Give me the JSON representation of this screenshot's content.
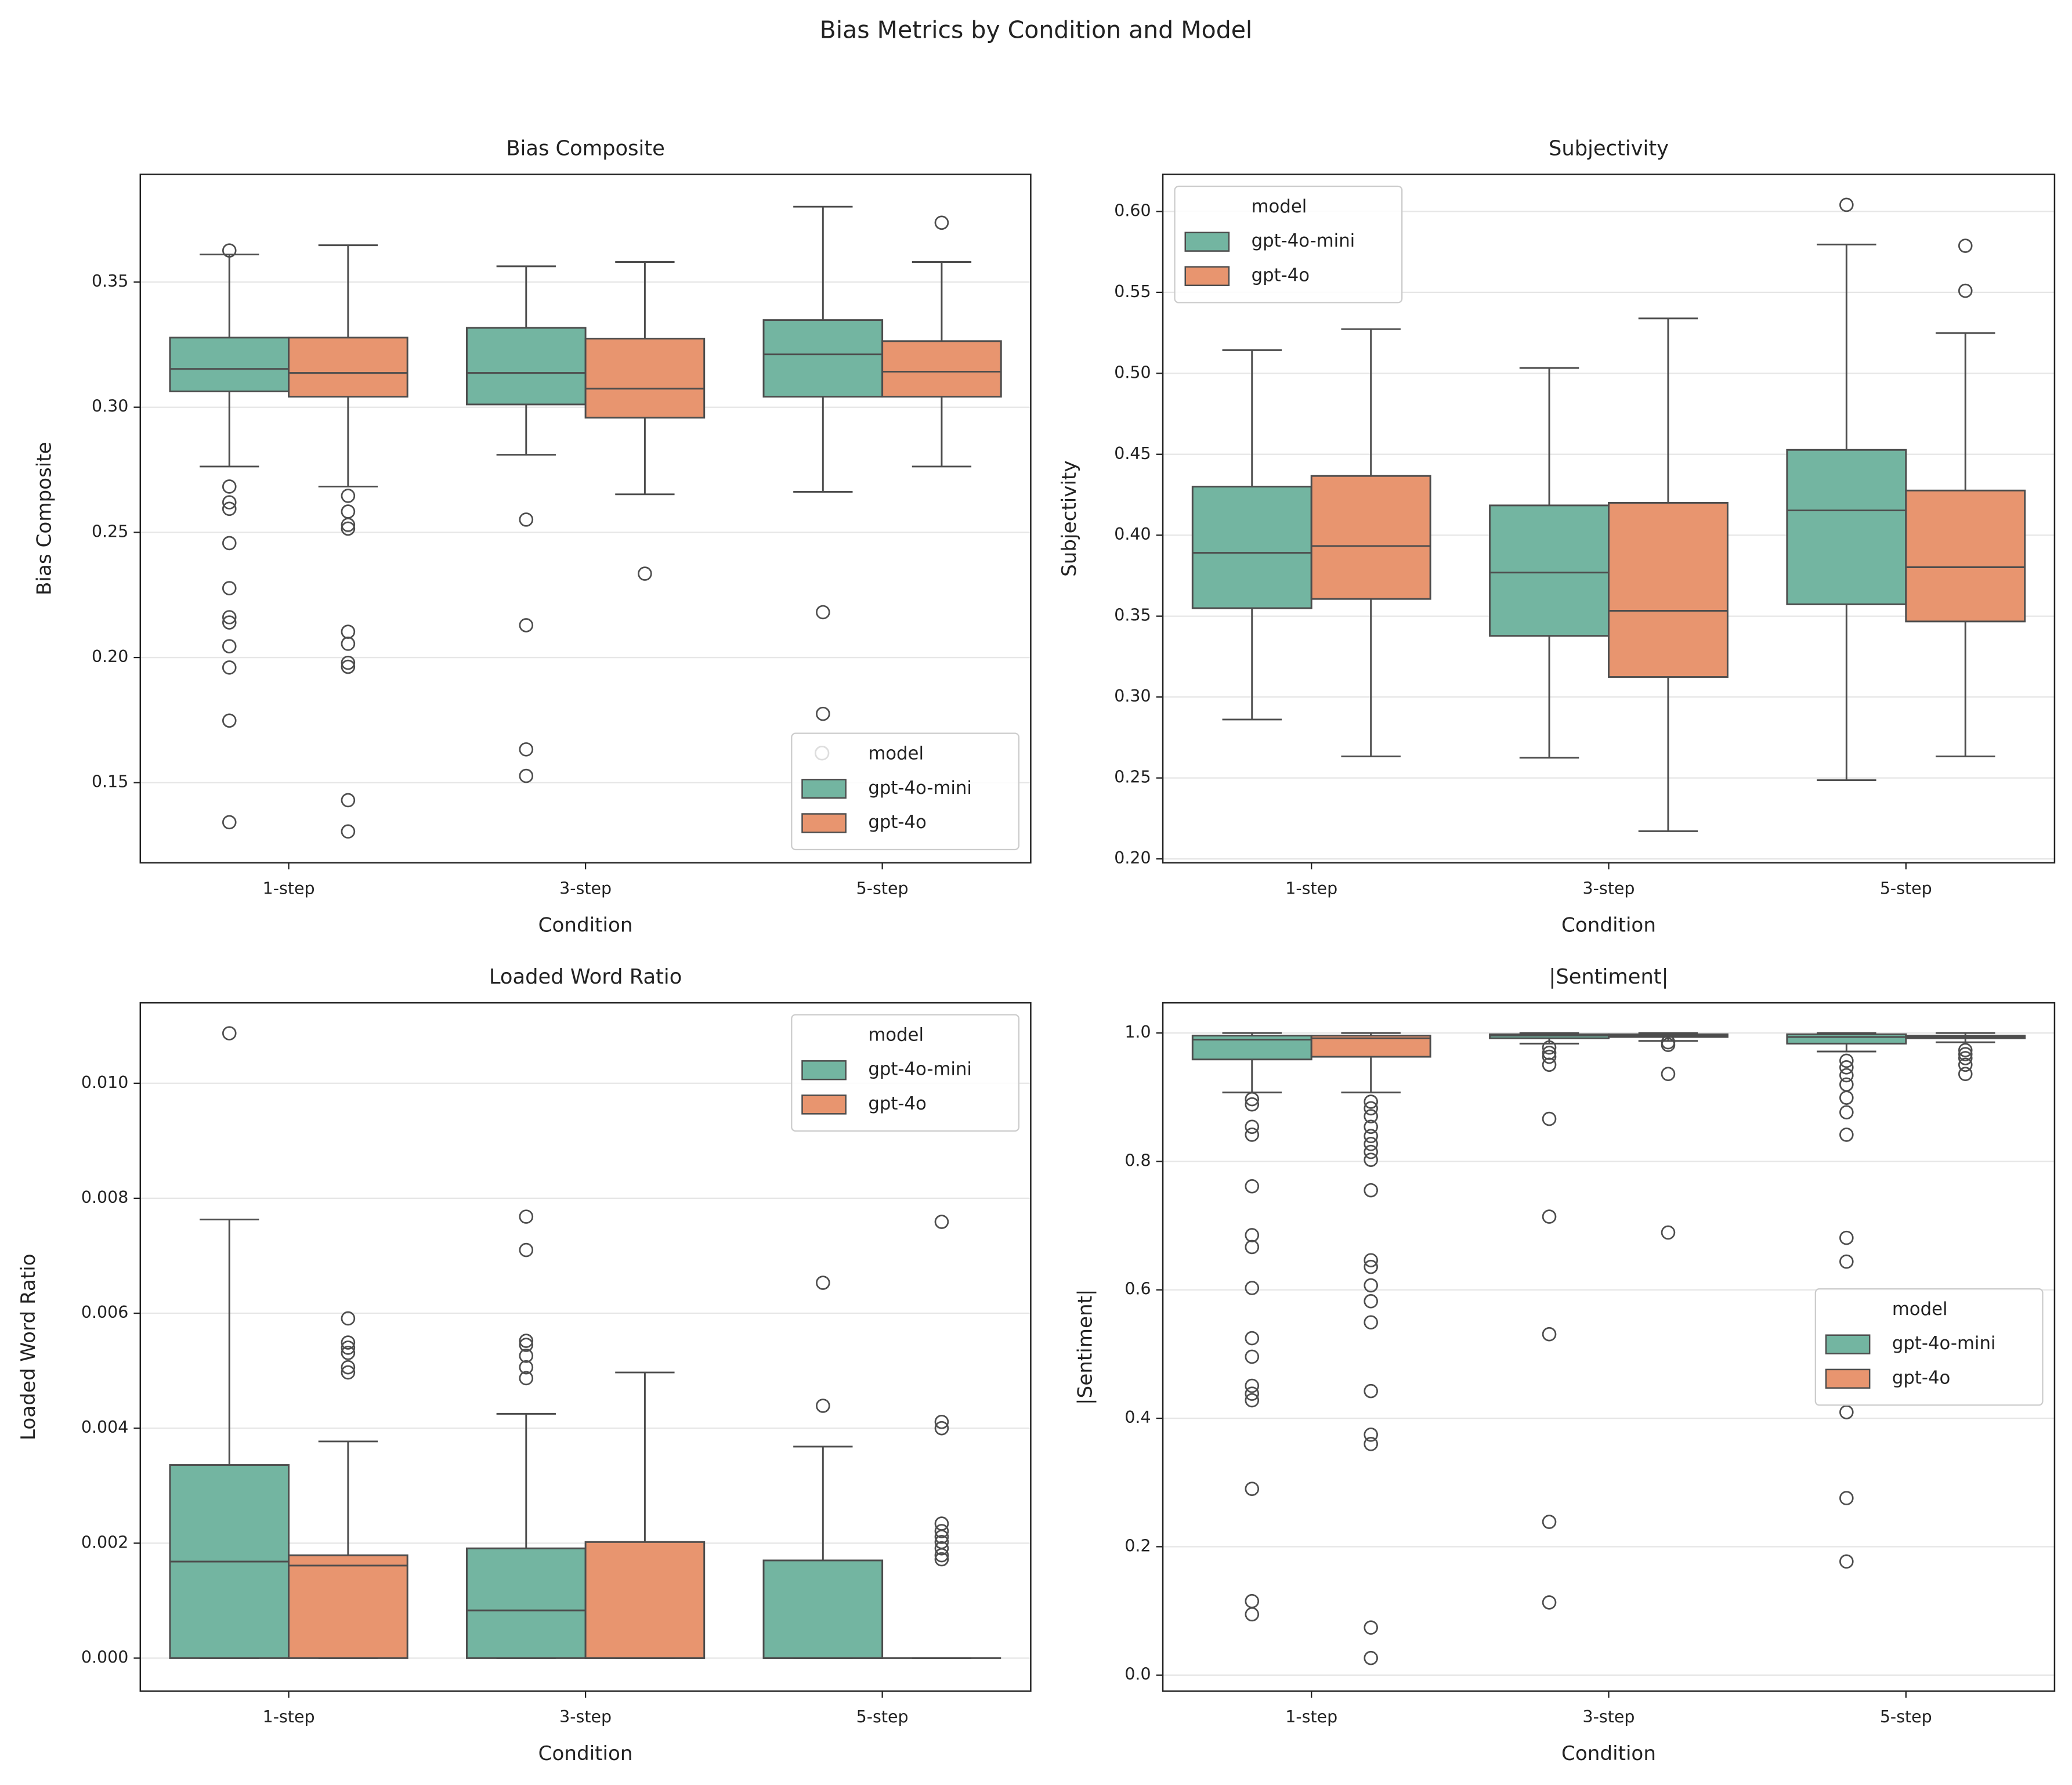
{
  "title": "Bias Metrics by Condition and Model",
  "chart_data": [
    {
      "type": "box",
      "title": "Bias Composite",
      "xlabel": "Condition",
      "ylabel": "Bias Composite",
      "categories": [
        "1-step",
        "3-step",
        "5-step"
      ],
      "ylim": [
        0.118,
        0.393
      ],
      "yticks": [
        {
          "value": 0.15,
          "label": "0.15"
        },
        {
          "value": 0.2,
          "label": "0.20"
        },
        0.25,
        {
          "value": 0.3,
          "label": "0.30"
        },
        0.35
      ],
      "grid": true,
      "legend_title": "model",
      "legend_loc": "lower right",
      "series": [
        {
          "name": "gpt-4o-mini",
          "color": "#73b5a1",
          "boxes": [
            {
              "whislo": 0.2763,
              "q1": 0.3063,
              "med": 0.3153,
              "q3": 0.3278,
              "whishi": 0.361,
              "fliers": [
                0.3626,
                0.2683,
                0.262,
                0.2594,
                0.2457,
                0.2277,
                0.2161,
                0.214,
                0.2045,
                0.196,
                0.1748,
                0.1342
              ]
            },
            {
              "whislo": 0.281,
              "q1": 0.3011,
              "med": 0.3137,
              "q3": 0.3317,
              "whishi": 0.3563,
              "fliers": [
                0.2551,
                0.2129,
                0.1633,
                0.1527
              ]
            },
            {
              "whislo": 0.2662,
              "q1": 0.3042,
              "med": 0.3211,
              "q3": 0.3348,
              "whishi": 0.3801,
              "fliers": [
                0.2181,
                0.1775
              ]
            }
          ]
        },
        {
          "name": "gpt-4o",
          "color": "#e8956f",
          "boxes": [
            {
              "whislo": 0.2683,
              "q1": 0.3042,
              "med": 0.3137,
              "q3": 0.3278,
              "whishi": 0.3647,
              "fliers": [
                0.2646,
                0.2583,
                0.253,
                0.2515,
                0.2103,
                0.2055,
                0.1979,
                0.1963,
                0.143,
                0.1305
              ]
            },
            {
              "whislo": 0.2652,
              "q1": 0.2958,
              "med": 0.3074,
              "q3": 0.3274,
              "whishi": 0.358,
              "fliers": [
                0.2335
              ]
            },
            {
              "whislo": 0.2763,
              "q1": 0.3042,
              "med": 0.3142,
              "q3": 0.3264,
              "whishi": 0.358,
              "fliers": [
                0.3737
              ]
            }
          ]
        }
      ]
    },
    {
      "type": "box",
      "title": "Subjectivity",
      "xlabel": "Condition",
      "ylabel": "Subjectivity",
      "categories": [
        "1-step",
        "3-step",
        "5-step"
      ],
      "ylim": [
        0.1976,
        0.6229
      ],
      "yticks": [
        {
          "value": 0.2,
          "label": "0.20"
        },
        0.25,
        {
          "value": 0.3,
          "label": "0.30"
        },
        0.35,
        {
          "value": 0.4,
          "label": "0.40"
        },
        0.45,
        {
          "value": 0.5,
          "label": "0.50"
        },
        0.55,
        {
          "value": 0.6,
          "label": "0.60"
        }
      ],
      "grid": true,
      "legend_title": "model",
      "legend_loc": "upper left",
      "series": [
        {
          "name": "gpt-4o-mini",
          "color": "#73b5a1",
          "boxes": [
            {
              "whislo": 0.2861,
              "q1": 0.3549,
              "med": 0.3891,
              "q3": 0.43,
              "whishi": 0.5143,
              "fliers": []
            },
            {
              "whislo": 0.2625,
              "q1": 0.3378,
              "med": 0.3769,
              "q3": 0.4184,
              "whishi": 0.5033,
              "fliers": []
            },
            {
              "whislo": 0.2486,
              "q1": 0.3573,
              "med": 0.4153,
              "q3": 0.4527,
              "whishi": 0.5796,
              "fliers": [
                0.6041
              ]
            }
          ]
        },
        {
          "name": "gpt-4o",
          "color": "#e8956f",
          "boxes": [
            {
              "whislo": 0.2633,
              "q1": 0.3606,
              "med": 0.3933,
              "q3": 0.4366,
              "whishi": 0.5273,
              "fliers": []
            },
            {
              "whislo": 0.2171,
              "q1": 0.3124,
              "med": 0.3533,
              "q3": 0.42,
              "whishi": 0.5339,
              "fliers": []
            },
            {
              "whislo": 0.2633,
              "q1": 0.3467,
              "med": 0.3802,
              "q3": 0.4276,
              "whishi": 0.5249,
              "fliers": [
                0.5788,
                0.551
              ]
            }
          ]
        }
      ]
    },
    {
      "type": "box",
      "title": "Loaded Word Ratio",
      "xlabel": "Condition",
      "ylabel": "Loaded Word Ratio",
      "categories": [
        "1-step",
        "3-step",
        "5-step"
      ],
      "ylim": [
        -0.000575,
        0.0114
      ],
      "yticks": [
        {
          "value": 0,
          "label": "0.000"
        },
        0.002,
        0.004,
        0.006,
        0.008,
        {
          "value": 0.01,
          "label": "0.010"
        }
      ],
      "grid": true,
      "legend_title": "model",
      "legend_loc": "upper right",
      "series": [
        {
          "name": "gpt-4o-mini",
          "color": "#73b5a1",
          "boxes": [
            {
              "whislo": 0,
              "q1": 0,
              "med": 0.00168,
              "q3": 0.00336,
              "whishi": 0.00763,
              "fliers": [
                0.01087
              ]
            },
            {
              "whislo": 0,
              "q1": 0,
              "med": 0.00083,
              "q3": 0.00191,
              "whishi": 0.00425,
              "fliers": [
                0.00768,
                0.0071,
                0.00552,
                0.00545,
                0.00526,
                0.00506,
                0.00487
              ]
            },
            {
              "whislo": 0,
              "q1": 0,
              "med": 0,
              "q3": 0.0017,
              "whishi": 0.00368,
              "fliers": [
                0.00653,
                0.00439
              ]
            }
          ]
        },
        {
          "name": "gpt-4o",
          "color": "#e8956f",
          "boxes": [
            {
              "whislo": 0,
              "q1": 0,
              "med": 0.00161,
              "q3": 0.00179,
              "whishi": 0.00377,
              "fliers": [
                0.00591,
                0.00549,
                0.0054,
                0.00531,
                0.00506,
                0.00497
              ]
            },
            {
              "whislo": 0,
              "q1": 0,
              "med": 0,
              "q3": 0.00202,
              "whishi": 0.00497,
              "fliers": []
            },
            {
              "whislo": 0,
              "q1": 0,
              "med": 0,
              "q3": 0,
              "whishi": 0,
              "fliers": [
                0.00759,
                0.00411,
                0.004,
                0.00234,
                0.00221,
                0.00211,
                0.00202,
                0.00191,
                0.00179,
                0.00172
              ]
            }
          ]
        }
      ]
    },
    {
      "type": "box",
      "title": "|Sentiment|",
      "xlabel": "Condition",
      "ylabel": "|Sentiment|",
      "categories": [
        "1-step",
        "3-step",
        "5-step"
      ],
      "ylim": [
        -0.025,
        1.047
      ],
      "yticks": [
        {
          "value": 0,
          "label": "0.0"
        },
        0.2,
        0.4,
        0.6,
        0.8,
        {
          "value": 1,
          "label": "1.0"
        }
      ],
      "grid": true,
      "legend_title": "model",
      "legend_loc": "center right",
      "series": [
        {
          "name": "gpt-4o-mini",
          "color": "#73b5a1",
          "boxes": [
            {
              "whislo": 0.9074,
              "q1": 0.9588,
              "med": 0.9897,
              "q3": 0.9959,
              "whishi": 1.0,
              "fliers": [
                0.897,
                0.8888,
                0.8539,
                0.8416,
                0.7613,
                0.6852,
                0.6667,
                0.6029,
                0.5247,
                0.4959,
                0.4506,
                0.4383,
                0.428,
                0.2901,
                0.1152,
                0.0947
              ]
            },
            {
              "whislo": 0.9835,
              "q1": 0.9918,
              "med": 0.9959,
              "q3": 0.998,
              "whishi": 1.0,
              "fliers": [
                0.9774,
                0.9691,
                0.963,
                0.9506,
                0.8663,
                0.714,
                0.5309,
                0.2387,
                0.1132
              ]
            },
            {
              "whislo": 0.9712,
              "q1": 0.9835,
              "med": 0.9938,
              "q3": 0.998,
              "whishi": 1.0,
              "fliers": [
                0.9568,
                0.9465,
                0.9342,
                0.9198,
                0.8992,
                0.8765,
                0.8416,
                0.681,
                0.644,
                0.4095,
                0.2757,
                0.177
              ]
            }
          ]
        },
        {
          "name": "gpt-4o",
          "color": "#e8956f",
          "boxes": [
            {
              "whislo": 0.9074,
              "q1": 0.963,
              "med": 0.9918,
              "q3": 0.9959,
              "whishi": 1.0,
              "fliers": [
                0.893,
                0.8827,
                0.8704,
                0.8539,
                0.8395,
                0.8272,
                0.8148,
                0.8025,
                0.7551,
                0.6461,
                0.6358,
                0.607,
                0.5823,
                0.5494,
                0.4424,
                0.3745,
                0.36,
                0.0741,
                0.0267
              ]
            },
            {
              "whislo": 0.9877,
              "q1": 0.9938,
              "med": 0.9959,
              "q3": 0.998,
              "whishi": 1.0,
              "fliers": [
                0.9856,
                0.9815,
                0.9362,
                0.6893
              ]
            },
            {
              "whislo": 0.9856,
              "q1": 0.9918,
              "med": 0.9938,
              "q3": 0.9959,
              "whishi": 1.0,
              "fliers": [
                0.9733,
                0.9671,
                0.9609,
                0.9506,
                0.9362
              ]
            }
          ]
        }
      ]
    }
  ]
}
